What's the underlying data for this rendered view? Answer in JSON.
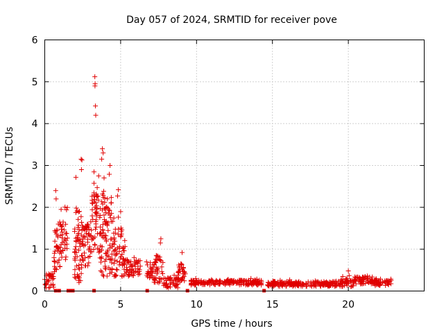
{
  "chart_data": {
    "type": "scatter",
    "title": "Day 057 of 2024, SRMTID for receiver pove",
    "xlabel": "GPS time / hours",
    "ylabel": "SRMTID / TECUs",
    "xlim": [
      0,
      25
    ],
    "ylim": [
      0,
      6
    ],
    "xticks": [
      0,
      5,
      10,
      15,
      20
    ],
    "yticks": [
      0,
      1,
      2,
      3,
      4,
      5,
      6
    ],
    "grid": true,
    "marker": "+",
    "color": "#e00000",
    "segments": [
      {
        "x0": 0.0,
        "x1": 0.6,
        "base": 0.25,
        "spread": 0.35
      },
      {
        "x0": 0.6,
        "x1": 1.0,
        "base": 1.1,
        "spread": 1.3
      },
      {
        "x0": 1.0,
        "x1": 1.5,
        "base": 1.2,
        "spread": 0.9
      },
      {
        "x0": 1.9,
        "x1": 2.5,
        "base": 1.1,
        "spread": 1.8
      },
      {
        "x0": 2.5,
        "x1": 3.1,
        "base": 1.1,
        "spread": 1.0
      },
      {
        "x0": 3.1,
        "x1": 3.6,
        "base": 1.6,
        "spread": 1.5
      },
      {
        "x0": 3.6,
        "x1": 4.4,
        "base": 1.3,
        "spread": 1.9
      },
      {
        "x0": 4.4,
        "x1": 5.3,
        "base": 0.9,
        "spread": 1.2
      },
      {
        "x0": 5.3,
        "x1": 6.3,
        "base": 0.55,
        "spread": 0.4
      },
      {
        "x0": 6.7,
        "x1": 7.2,
        "base": 0.5,
        "spread": 0.4
      },
      {
        "x0": 7.2,
        "x1": 7.8,
        "base": 0.5,
        "spread": 0.7
      },
      {
        "x0": 7.8,
        "x1": 8.8,
        "base": 0.2,
        "spread": 0.25
      },
      {
        "x0": 8.8,
        "x1": 9.3,
        "base": 0.4,
        "spread": 0.5
      },
      {
        "x0": 9.6,
        "x1": 14.3,
        "base": 0.2,
        "spread": 0.12
      },
      {
        "x0": 14.6,
        "x1": 19.5,
        "base": 0.17,
        "spread": 0.12
      },
      {
        "x0": 19.5,
        "x1": 20.4,
        "base": 0.2,
        "spread": 0.2
      },
      {
        "x0": 20.4,
        "x1": 21.6,
        "base": 0.26,
        "spread": 0.18
      },
      {
        "x0": 21.6,
        "x1": 22.9,
        "base": 0.2,
        "spread": 0.15
      }
    ],
    "peaks": [
      {
        "x": 0.72,
        "y": 2.4
      },
      {
        "x": 0.75,
        "y": 2.2
      },
      {
        "x": 1.08,
        "y": 1.95
      },
      {
        "x": 2.4,
        "y": 3.15
      },
      {
        "x": 2.45,
        "y": 3.13
      },
      {
        "x": 2.42,
        "y": 2.9
      },
      {
        "x": 3.3,
        "y": 5.12
      },
      {
        "x": 3.32,
        "y": 4.95
      },
      {
        "x": 3.31,
        "y": 4.9
      },
      {
        "x": 3.34,
        "y": 4.42
      },
      {
        "x": 3.36,
        "y": 4.2
      },
      {
        "x": 3.8,
        "y": 3.4
      },
      {
        "x": 3.85,
        "y": 3.3
      },
      {
        "x": 3.75,
        "y": 3.15
      },
      {
        "x": 4.3,
        "y": 3.0
      },
      {
        "x": 3.55,
        "y": 2.75
      },
      {
        "x": 4.85,
        "y": 2.42
      },
      {
        "x": 4.8,
        "y": 2.27
      },
      {
        "x": 7.65,
        "y": 1.25
      },
      {
        "x": 7.62,
        "y": 1.15
      },
      {
        "x": 9.05,
        "y": 0.92
      },
      {
        "x": 20.0,
        "y": 0.48
      }
    ],
    "zero_markers": [
      0.72,
      0.95,
      1.55,
      1.65,
      1.75,
      1.85,
      3.25,
      6.75,
      9.4,
      14.45
    ]
  }
}
